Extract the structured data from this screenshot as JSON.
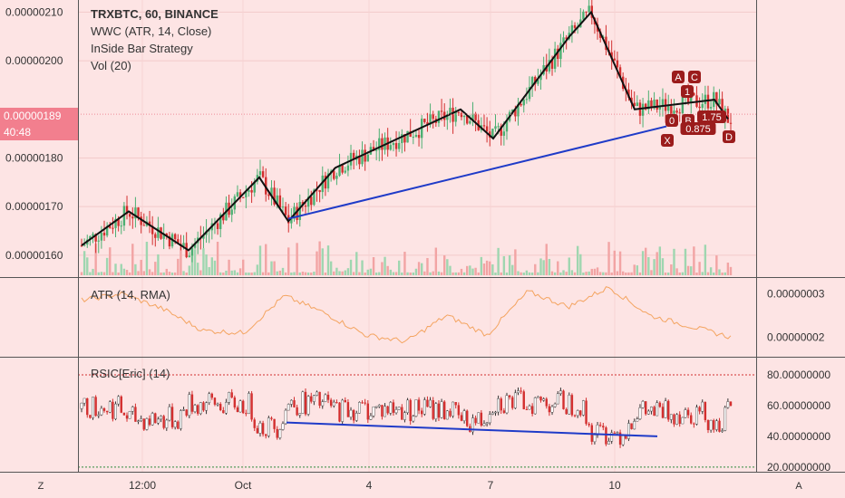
{
  "legend": {
    "symbol": "TRXBTC, 60, BINANCE",
    "line2": "WWC (ATR, 14, Close)",
    "line3": "InSide Bar Strategy",
    "line4": "Vol (20)"
  },
  "price_tag": {
    "price": "0.00000189",
    "countdown": "40:48",
    "color": "#f27f8e"
  },
  "pattern_labels": [
    "A",
    "C",
    "1",
    "0",
    "B",
    "1.75",
    "0.875",
    "X",
    "D"
  ],
  "atr_title": "ATR (14, RMA)",
  "rsi_title": "RSIC[Eric] (14)",
  "corners": {
    "left": "Z",
    "right": "A"
  },
  "colors": {
    "background": "#fde4e4",
    "up": "#4caf72",
    "down": "#d32f2f",
    "trend": "#1f3bc8",
    "zigzag": "#111111",
    "atr": "#f4a460",
    "badge": "#9b1c1c"
  },
  "chart_data": [
    {
      "type": "candlestick",
      "title": "TRXBTC, 60, BINANCE",
      "x_tick_labels": [
        "12:00",
        "Oct",
        "4",
        "7",
        "10"
      ],
      "y_tick_labels": [
        "0.00000210",
        "0.00000200",
        "0.00000180",
        "0.00000170",
        "0.00000160"
      ],
      "ylim": [
        1.555e-06,
        2.125e-06
      ],
      "zigzag": [
        1.62e-06,
        1.69e-06,
        1.61e-06,
        1.76e-06,
        1.67e-06,
        1.78e-06,
        1.9e-06,
        1.84e-06,
        2.05e-06,
        2.1e-06,
        1.9e-06,
        1.92e-06,
        1.88e-06
      ],
      "trendline": [
        1.675e-06,
        1.865e-06
      ],
      "last_price": 1.89e-06
    },
    {
      "type": "line",
      "title": "ATR (14, RMA)",
      "y_tick_labels": [
        "0.00000003",
        "0.00000002"
      ],
      "ylim": [
        1.55e-08,
        3.32e-08
      ],
      "values": [
        2.85e-08,
        3e-08,
        2.65e-08,
        2.15e-08,
        2.1e-08,
        2.95e-08,
        2.55e-08,
        2.05e-08,
        1.9e-08,
        2.5e-08,
        2.05e-08,
        3.05e-08,
        2.7e-08,
        3.15e-08,
        2.5e-08,
        2.25e-08,
        2e-08
      ]
    },
    {
      "type": "line",
      "title": "RSIC[Eric] (14)",
      "y_tick_labels": [
        "80.00000000",
        "60.00000000",
        "40.00000000",
        "20.00000000"
      ],
      "ylim": [
        17,
        90
      ],
      "levels": [
        80,
        20
      ],
      "trendline": [
        49,
        40
      ]
    }
  ]
}
